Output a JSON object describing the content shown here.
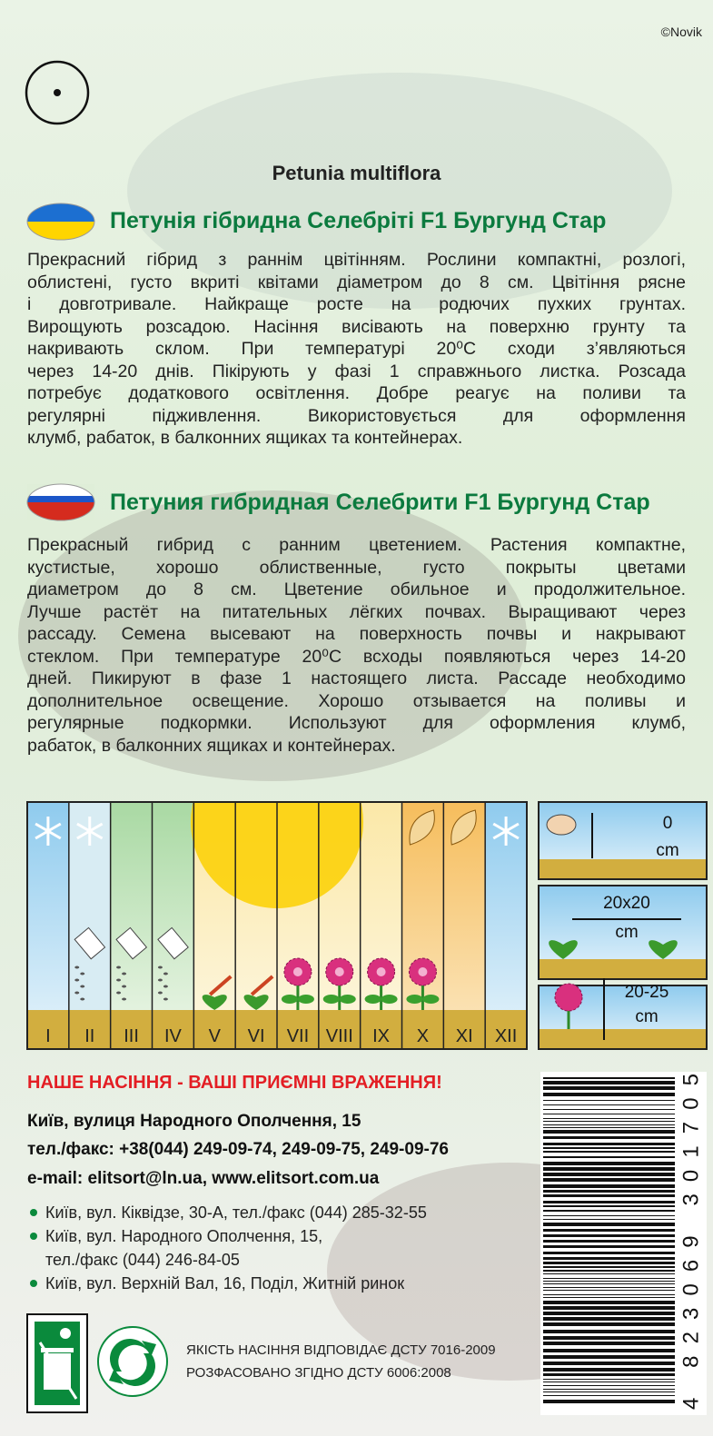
{
  "copyright": "©Novik",
  "latin_name": "Petunia multiflora",
  "ua": {
    "title": "Петунія гібридна Селебріті F1 Бургунд Стар",
    "lines": [
      "Прекрасний гібрид з раннім цвітінням. Рослини компактні, розлогі,",
      "облистені, густо вкриті квітами діаметром до 8 см. Цвітіння рясне",
      "і довготривале. Найкраще росте на родючих пухких грунтах.",
      "Вирощують розсадою. Насіння висівають на поверхню грунту та",
      "накривають склом. При температурі 20⁰C сходи з’являються",
      "через 14-20 днів. Пікірують у фазі 1 справжнього листка. Розсада",
      "потребує додаткового освітлення. Добре реагує на поливи та",
      "регулярні підживлення. Використовується для оформлення",
      "клумб, рабаток, в балконних ящиках та контейнерах."
    ]
  },
  "ru": {
    "title": "Петуния гибридная Селебрити F1 Бургунд Стар",
    "lines": [
      "Прекрасный гибрид с ранним цветением. Растения компактне,",
      "кустистые, хорошо облиственные, густо покрыты цветами",
      "диаметром до 8 см. Цветение обильное и продолжительное.",
      "Лучше растёт на питательных лёгких почвах. Выращивают через",
      "рассаду. Семена высевают на поверхность почвы и накрывают",
      "стеклом. При температуре 20⁰C всходы появляються через 14-20",
      "дней. Пикируют в фазе 1 настоящего листа. Рассаде необходимо",
      "дополнительное освещение. Хорошо отзывается на поливы и",
      "регулярные подкормки. Используют для оформления клумб,",
      "рабаток, в балконних ящиках и контейнерах."
    ]
  },
  "months": [
    "I",
    "II",
    "III",
    "IV",
    "V",
    "VI",
    "VII",
    "VIII",
    "IX",
    "X",
    "XI",
    "XII"
  ],
  "planting": [
    {
      "value": "0",
      "unit": "cm"
    },
    {
      "value": "20x20",
      "unit": "cm"
    },
    {
      "value": "20-25",
      "unit": "cm"
    }
  ],
  "slogan": "НАШЕ НАСІННЯ - ВАШІ ПРИЄМНІ ВРАЖЕННЯ!",
  "contacts": [
    "Київ, вулиця Народного Ополчення, 15",
    "тел./факс: +38(044) 249-09-74, 249-09-75, 249-09-76",
    "e-mail: elitsort@ln.ua, www.elitsort.com.ua"
  ],
  "shops": [
    [
      "Київ, вул. Кіквідзе, 30-А, тел./факс (044) 285-32-55"
    ],
    [
      "Київ, вул. Народного Ополчення, 15,",
      "тел./факс (044) 246-84-05"
    ],
    [
      "Київ, вул. Верхній Вал, 16, Поділ, Житній ринок"
    ]
  ],
  "barcode": "4 823069 301705",
  "standards": [
    "ЯКІСТЬ НАСІННЯ ВІДПОВІДАЄ ДСТУ 7016-2009",
    "РОЗФАСОВАНО ЗГІДНО ДСТУ 6006:2008"
  ]
}
